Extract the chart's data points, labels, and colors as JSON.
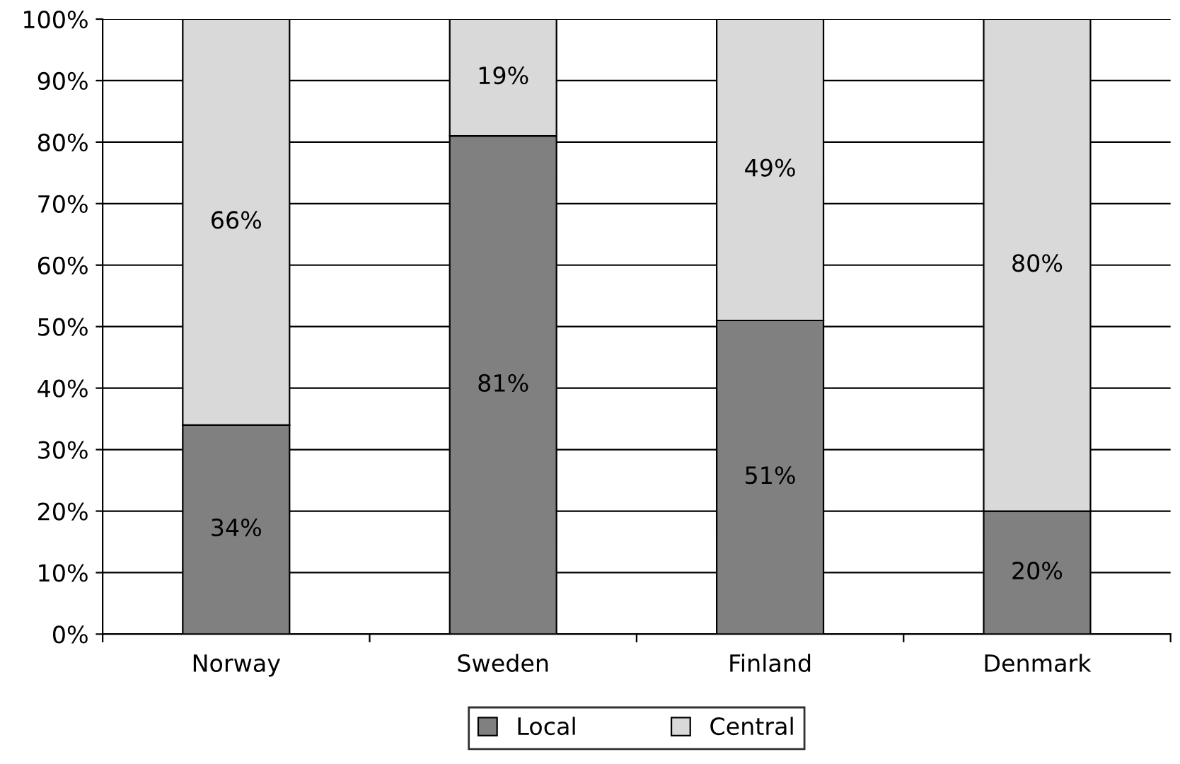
{
  "chart_data": {
    "type": "bar",
    "stacked": true,
    "categories": [
      "Norway",
      "Sweden",
      "Finland",
      "Denmark"
    ],
    "series": [
      {
        "name": "Local",
        "color": "#808080",
        "values": [
          34,
          81,
          51,
          20
        ],
        "value_labels": [
          "34%",
          "81%",
          "51%",
          "20%"
        ]
      },
      {
        "name": "Central",
        "color": "#d9d9d9",
        "values": [
          66,
          19,
          49,
          80
        ],
        "value_labels": [
          "66%",
          "19%",
          "49%",
          "80%"
        ]
      }
    ],
    "ylim": [
      0,
      100
    ],
    "yticks": [
      {
        "value": 0,
        "label": "0%"
      },
      {
        "value": 10,
        "label": "10%"
      },
      {
        "value": 20,
        "label": "20%"
      },
      {
        "value": 30,
        "label": "30%"
      },
      {
        "value": 40,
        "label": "40%"
      },
      {
        "value": 50,
        "label": "50%"
      },
      {
        "value": 60,
        "label": "60%"
      },
      {
        "value": 70,
        "label": "70%"
      },
      {
        "value": 80,
        "label": "80%"
      },
      {
        "value": 90,
        "label": "90%"
      },
      {
        "value": 100,
        "label": "100%"
      }
    ],
    "grid": "y",
    "legend": "bottom"
  }
}
